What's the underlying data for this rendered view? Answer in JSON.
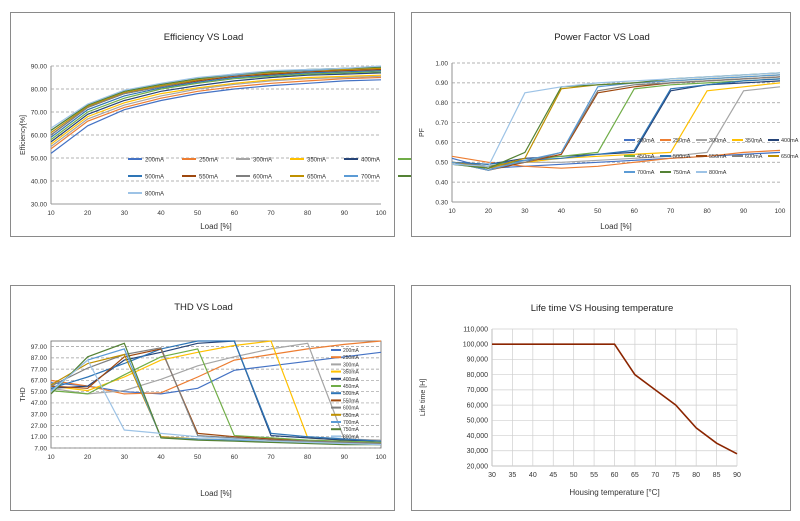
{
  "chart_data": [
    {
      "type": "line",
      "title": "Efficiency VS Load",
      "xlabel": "Load [%]",
      "ylabel": "Efficiency[%]",
      "xlim": [
        10,
        100
      ],
      "ylim": [
        30,
        90
      ],
      "xticks": [
        "10",
        "20",
        "30",
        "40",
        "50",
        "60",
        "70",
        "80",
        "90",
        "100"
      ],
      "yticks": [
        "30.00",
        "40.00",
        "50.00",
        "60.00",
        "70.00",
        "80.00",
        "90.00"
      ],
      "grid": true,
      "legend": "inside-bottom",
      "x": [
        10,
        20,
        30,
        40,
        50,
        60,
        70,
        80,
        90,
        100
      ],
      "series": [
        {
          "name": "200mA",
          "color": "#4472c4",
          "values": [
            52,
            64,
            71,
            75,
            78,
            80,
            81.5,
            82.5,
            83.5,
            84
          ]
        },
        {
          "name": "250mA",
          "color": "#ed7d31",
          "values": [
            54,
            66,
            72,
            76,
            79,
            81,
            82.5,
            83.5,
            84.5,
            85
          ]
        },
        {
          "name": "300mA",
          "color": "#a5a5a5",
          "values": [
            55,
            67,
            73,
            77,
            80,
            82,
            83.5,
            84.5,
            85,
            85.5
          ]
        },
        {
          "name": "350mA",
          "color": "#ffc000",
          "values": [
            56,
            68,
            74,
            78,
            80.5,
            82.5,
            84,
            85,
            85.5,
            86
          ]
        },
        {
          "name": "400mA",
          "color": "#264478",
          "values": [
            57,
            69,
            75,
            79,
            81.5,
            83.5,
            85,
            86,
            86.5,
            87
          ]
        },
        {
          "name": "450mA",
          "color": "#70ad47",
          "values": [
            58,
            70,
            76,
            80,
            82.5,
            84.5,
            85.5,
            86.5,
            87,
            87.5
          ]
        },
        {
          "name": "500mA",
          "color": "#2e75b6",
          "values": [
            59,
            71,
            77,
            80.5,
            83,
            85,
            86,
            87,
            87.5,
            88
          ]
        },
        {
          "name": "550mA",
          "color": "#9e480e",
          "values": [
            60,
            72,
            78,
            81,
            83.5,
            85.5,
            86.5,
            87.5,
            88,
            88.5
          ]
        },
        {
          "name": "600mA",
          "color": "#7f7f7f",
          "values": [
            60,
            72,
            78,
            81,
            84,
            86,
            87,
            88,
            88.5,
            89
          ]
        },
        {
          "name": "650mA",
          "color": "#bf9000",
          "values": [
            61,
            72.5,
            78.5,
            81.5,
            84,
            86,
            87,
            88,
            88.5,
            89
          ]
        },
        {
          "name": "700mA",
          "color": "#5b9bd5",
          "values": [
            62,
            73,
            79,
            82,
            84.5,
            86,
            87.5,
            88,
            89,
            89.5
          ]
        },
        {
          "name": "750mA",
          "color": "#548235",
          "values": [
            62,
            73,
            79,
            82,
            84.5,
            86.5,
            87.5,
            88.5,
            89,
            89.5
          ]
        },
        {
          "name": "800mA",
          "color": "#9dc3e6",
          "values": [
            63,
            73.5,
            79.5,
            82.5,
            85,
            86.5,
            88,
            88.5,
            89,
            90
          ]
        }
      ]
    },
    {
      "type": "line",
      "title": "Power Factor VS Load",
      "xlabel": "Load [%]",
      "ylabel": "PF",
      "xlim": [
        10,
        100
      ],
      "ylim": [
        0.3,
        1.0
      ],
      "xticks": [
        "10",
        "20",
        "30",
        "40",
        "50",
        "60",
        "70",
        "80",
        "90",
        "100"
      ],
      "yticks": [
        "0.30",
        "0.40",
        "0.50",
        "0.60",
        "0.70",
        "0.80",
        "0.90",
        "1.00"
      ],
      "grid": true,
      "legend": "inside-middle",
      "x": [
        10,
        20,
        30,
        40,
        50,
        60,
        70,
        80,
        90,
        100
      ],
      "series": [
        {
          "name": "200mA",
          "color": "#4472c4",
          "values": [
            0.52,
            0.47,
            0.48,
            0.49,
            0.5,
            0.51,
            0.52,
            0.53,
            0.54,
            0.55
          ]
        },
        {
          "name": "250mA",
          "color": "#ed7d31",
          "values": [
            0.53,
            0.5,
            0.48,
            0.47,
            0.48,
            0.5,
            0.52,
            0.53,
            0.55,
            0.56
          ]
        },
        {
          "name": "300mA",
          "color": "#a5a5a5",
          "values": [
            0.49,
            0.47,
            0.5,
            0.5,
            0.51,
            0.52,
            0.53,
            0.55,
            0.86,
            0.88
          ]
        },
        {
          "name": "350mA",
          "color": "#ffc000",
          "values": [
            0.5,
            0.48,
            0.5,
            0.52,
            0.53,
            0.54,
            0.55,
            0.86,
            0.88,
            0.9
          ]
        },
        {
          "name": "400mA",
          "color": "#264478",
          "values": [
            0.5,
            0.49,
            0.52,
            0.53,
            0.54,
            0.55,
            0.86,
            0.89,
            0.9,
            0.91
          ]
        },
        {
          "name": "450mA",
          "color": "#70ad47",
          "values": [
            0.5,
            0.48,
            0.51,
            0.53,
            0.55,
            0.87,
            0.89,
            0.9,
            0.91,
            0.92
          ]
        },
        {
          "name": "500mA",
          "color": "#2e75b6",
          "values": [
            0.5,
            0.49,
            0.51,
            0.52,
            0.54,
            0.56,
            0.87,
            0.89,
            0.91,
            0.92
          ]
        },
        {
          "name": "550mA",
          "color": "#9e480e",
          "values": [
            0.5,
            0.46,
            0.5,
            0.54,
            0.85,
            0.88,
            0.9,
            0.91,
            0.92,
            0.93
          ]
        },
        {
          "name": "600mA",
          "color": "#7f7f7f",
          "values": [
            0.5,
            0.48,
            0.5,
            0.55,
            0.86,
            0.89,
            0.9,
            0.91,
            0.92,
            0.93
          ]
        },
        {
          "name": "650mA",
          "color": "#bf9000",
          "values": [
            0.5,
            0.47,
            0.52,
            0.87,
            0.89,
            0.9,
            0.91,
            0.92,
            0.93,
            0.94
          ]
        },
        {
          "name": "700mA",
          "color": "#5b9bd5",
          "values": [
            0.5,
            0.46,
            0.51,
            0.55,
            0.88,
            0.9,
            0.91,
            0.92,
            0.93,
            0.94
          ]
        },
        {
          "name": "750mA",
          "color": "#548235",
          "values": [
            0.49,
            0.47,
            0.55,
            0.88,
            0.89,
            0.9,
            0.92,
            0.93,
            0.94,
            0.95
          ]
        },
        {
          "name": "800mA",
          "color": "#9dc3e6",
          "values": [
            0.49,
            0.48,
            0.85,
            0.88,
            0.9,
            0.91,
            0.92,
            0.93,
            0.94,
            0.95
          ]
        }
      ]
    },
    {
      "type": "line",
      "title": "THD VS Load",
      "xlabel": "Load [%]",
      "ylabel": "THD",
      "xlim": [
        10,
        100
      ],
      "ylim": [
        7,
        102
      ],
      "xticks": [
        "10",
        "20",
        "30",
        "40",
        "50",
        "60",
        "70",
        "80",
        "90",
        "100"
      ],
      "yticks": [
        "7.00",
        "17.00",
        "27.00",
        "37.00",
        "47.00",
        "57.00",
        "67.00",
        "77.00",
        "87.00",
        "97.00"
      ],
      "grid": true,
      "legend": "right",
      "x": [
        10,
        20,
        30,
        40,
        50,
        60,
        70,
        80,
        90,
        100
      ],
      "series": [
        {
          "name": "200mA",
          "color": "#4472c4",
          "values": [
            65,
            62,
            57,
            55,
            60,
            76,
            80,
            84,
            88,
            92
          ]
        },
        {
          "name": "250mA",
          "color": "#ed7d31",
          "values": [
            67,
            62,
            55,
            56,
            70,
            85,
            90,
            95,
            99,
            102
          ]
        },
        {
          "name": "300mA",
          "color": "#a5a5a5",
          "values": [
            60,
            55,
            58,
            68,
            80,
            88,
            95,
            100,
            15,
            14
          ]
        },
        {
          "name": "350mA",
          "color": "#ffc000",
          "values": [
            62,
            58,
            70,
            85,
            92,
            98,
            102,
            16,
            14,
            13
          ]
        },
        {
          "name": "400mA",
          "color": "#264478",
          "values": [
            60,
            62,
            85,
            92,
            100,
            105,
            18,
            16,
            14,
            13
          ]
        },
        {
          "name": "450mA",
          "color": "#70ad47",
          "values": [
            58,
            55,
            72,
            88,
            95,
            18,
            16,
            14,
            13,
            12
          ]
        },
        {
          "name": "500mA",
          "color": "#2e75b6",
          "values": [
            60,
            70,
            82,
            95,
            102,
            102,
            20,
            17,
            15,
            13
          ]
        },
        {
          "name": "550mA",
          "color": "#9e480e",
          "values": [
            62,
            60,
            88,
            95,
            20,
            17,
            15,
            13,
            12,
            11
          ]
        },
        {
          "name": "600mA",
          "color": "#7f7f7f",
          "values": [
            62,
            78,
            90,
            96,
            18,
            16,
            14,
            13,
            12,
            11
          ]
        },
        {
          "name": "650mA",
          "color": "#bf9000",
          "values": [
            63,
            82,
            90,
            17,
            15,
            14,
            13,
            12,
            11,
            10
          ]
        },
        {
          "name": "700mA",
          "color": "#5b9bd5",
          "values": [
            58,
            85,
            95,
            16,
            15,
            14,
            13,
            12,
            11,
            10
          ]
        },
        {
          "name": "750mA",
          "color": "#548235",
          "values": [
            55,
            88,
            100,
            16,
            14,
            13,
            12,
            11,
            10,
            10
          ]
        },
        {
          "name": "800mA",
          "color": "#9dc3e6",
          "values": [
            57,
            85,
            23,
            20,
            17,
            15,
            13,
            12,
            11,
            10
          ]
        }
      ]
    },
    {
      "type": "line",
      "title": "Life time VS Housing temperature",
      "xlabel": "Housing temperature [°C]",
      "ylabel": "Life time [H]",
      "xlim": [
        30,
        90
      ],
      "ylim": [
        20000,
        110000
      ],
      "xticks": [
        "30",
        "35",
        "40",
        "45",
        "50",
        "55",
        "60",
        "65",
        "70",
        "75",
        "80",
        "85",
        "90"
      ],
      "yticks": [
        "20,000",
        "30,000",
        "40,000",
        "50,000",
        "60,000",
        "70,000",
        "80,000",
        "90,000",
        "100,000",
        "110,000"
      ],
      "grid": true,
      "series": [
        {
          "color": "#8b2500",
          "x": [
            30,
            60,
            62.5,
            65,
            70,
            75,
            80,
            85,
            90
          ],
          "values": [
            100000,
            100000,
            90000,
            80000,
            70000,
            60000,
            45000,
            35000,
            28000
          ]
        }
      ]
    }
  ]
}
